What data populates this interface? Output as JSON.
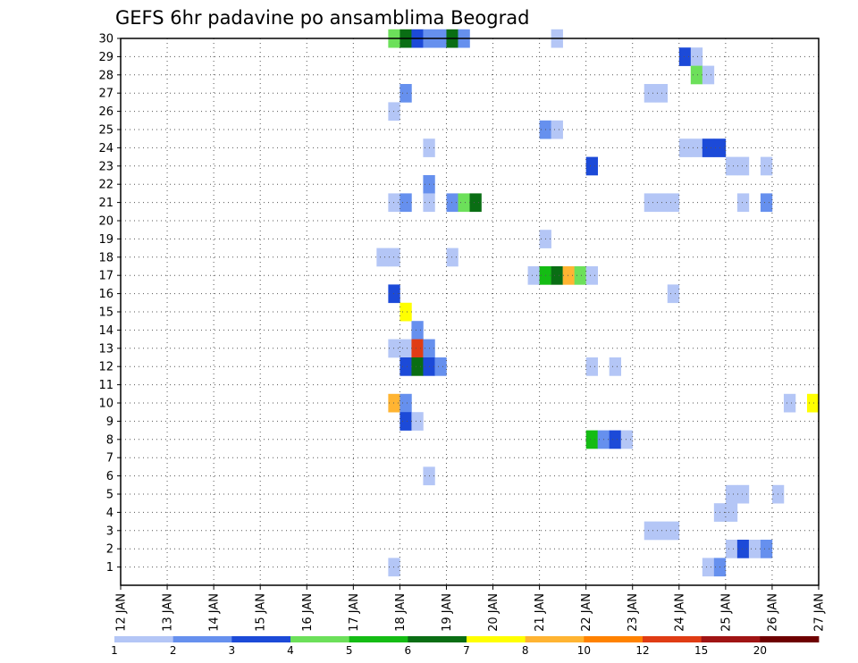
{
  "chart_data": {
    "type": "heatmap",
    "title": "GEFS 6hr padavine po ansamblima Beograd",
    "x_tick_labels": [
      "12 JAN",
      "13 JAN",
      "14 JAN",
      "15 JAN",
      "16 JAN",
      "17 JAN",
      "18 JAN",
      "19 JAN",
      "20 JAN",
      "21 JAN",
      "22 JAN",
      "23 JAN",
      "24 JAN",
      "25 JAN",
      "26 JAN",
      "27 JAN"
    ],
    "x_range_days": [
      12,
      27
    ],
    "y_tick_labels": [
      "1",
      "2",
      "3",
      "4",
      "5",
      "6",
      "7",
      "8",
      "9",
      "10",
      "11",
      "12",
      "13",
      "14",
      "15",
      "16",
      "17",
      "18",
      "19",
      "20",
      "21",
      "22",
      "23",
      "24",
      "25",
      "26",
      "27",
      "28",
      "29",
      "30"
    ],
    "y_range": [
      0,
      30
    ],
    "grid": true,
    "time_step_hours": 6,
    "colorbar": {
      "tick_labels": [
        "1",
        "2",
        "3",
        "4",
        "5",
        "6",
        "7",
        "8",
        "10",
        "12",
        "15",
        "20"
      ],
      "colors": [
        "#b4c6f6",
        "#6690ee",
        "#1c4ad8",
        "#6ce05a",
        "#14bc14",
        "#0a6e14",
        "#ffff00",
        "#ffb432",
        "#ff8200",
        "#e03c14",
        "#a01414",
        "#6e0000"
      ]
    },
    "cells": [
      {
        "member": 30,
        "day": 17.75,
        "level": 4
      },
      {
        "member": 30,
        "day": 18.0,
        "level": 6
      },
      {
        "member": 30,
        "day": 18.25,
        "level": 3
      },
      {
        "member": 30,
        "day": 18.5,
        "level": 2
      },
      {
        "member": 30,
        "day": 18.75,
        "level": 2
      },
      {
        "member": 30,
        "day": 19.0,
        "level": 6
      },
      {
        "member": 30,
        "day": 19.25,
        "level": 2
      },
      {
        "member": 30,
        "day": 21.25,
        "level": 1
      },
      {
        "member": 29,
        "day": 24.0,
        "level": 3
      },
      {
        "member": 29,
        "day": 24.25,
        "level": 1
      },
      {
        "member": 28,
        "day": 24.25,
        "level": 4
      },
      {
        "member": 28,
        "day": 24.5,
        "level": 1
      },
      {
        "member": 27,
        "day": 18.0,
        "level": 2
      },
      {
        "member": 27,
        "day": 23.25,
        "level": 1
      },
      {
        "member": 27,
        "day": 23.5,
        "level": 1
      },
      {
        "member": 26,
        "day": 17.75,
        "level": 1
      },
      {
        "member": 25,
        "day": 21.0,
        "level": 2
      },
      {
        "member": 25,
        "day": 21.25,
        "level": 1
      },
      {
        "member": 24,
        "day": 18.5,
        "level": 1
      },
      {
        "member": 24,
        "day": 24.0,
        "level": 1
      },
      {
        "member": 24,
        "day": 24.25,
        "level": 1
      },
      {
        "member": 24,
        "day": 24.5,
        "level": 3
      },
      {
        "member": 24,
        "day": 24.75,
        "level": 3
      },
      {
        "member": 23,
        "day": 22.0,
        "level": 3
      },
      {
        "member": 23,
        "day": 25.0,
        "level": 1
      },
      {
        "member": 23,
        "day": 25.25,
        "level": 1
      },
      {
        "member": 23,
        "day": 25.75,
        "level": 1
      },
      {
        "member": 22,
        "day": 18.5,
        "level": 2
      },
      {
        "member": 21,
        "day": 17.75,
        "level": 1
      },
      {
        "member": 21,
        "day": 18.0,
        "level": 2
      },
      {
        "member": 21,
        "day": 18.5,
        "level": 1
      },
      {
        "member": 21,
        "day": 19.0,
        "level": 2
      },
      {
        "member": 21,
        "day": 19.25,
        "level": 4
      },
      {
        "member": 21,
        "day": 19.5,
        "level": 6
      },
      {
        "member": 21,
        "day": 23.25,
        "level": 1
      },
      {
        "member": 21,
        "day": 23.5,
        "level": 1
      },
      {
        "member": 21,
        "day": 23.75,
        "level": 1
      },
      {
        "member": 21,
        "day": 25.25,
        "level": 1
      },
      {
        "member": 21,
        "day": 25.75,
        "level": 2
      },
      {
        "member": 19,
        "day": 21.0,
        "level": 1
      },
      {
        "member": 18,
        "day": 17.5,
        "level": 1
      },
      {
        "member": 18,
        "day": 17.75,
        "level": 1
      },
      {
        "member": 18,
        "day": 19.0,
        "level": 1
      },
      {
        "member": 17,
        "day": 20.75,
        "level": 1
      },
      {
        "member": 17,
        "day": 21.0,
        "level": 5
      },
      {
        "member": 17,
        "day": 21.25,
        "level": 6
      },
      {
        "member": 17,
        "day": 21.5,
        "level": 8
      },
      {
        "member": 17,
        "day": 21.75,
        "level": 4
      },
      {
        "member": 17,
        "day": 22.0,
        "level": 1
      },
      {
        "member": 16,
        "day": 17.75,
        "level": 3
      },
      {
        "member": 16,
        "day": 23.75,
        "level": 1
      },
      {
        "member": 15,
        "day": 18.0,
        "level": 7
      },
      {
        "member": 14,
        "day": 18.25,
        "level": 2
      },
      {
        "member": 13,
        "day": 17.75,
        "level": 1
      },
      {
        "member": 13,
        "day": 18.0,
        "level": 1
      },
      {
        "member": 13,
        "day": 18.25,
        "level": 10
      },
      {
        "member": 13,
        "day": 18.5,
        "level": 2
      },
      {
        "member": 12,
        "day": 18.0,
        "level": 3
      },
      {
        "member": 12,
        "day": 18.25,
        "level": 6
      },
      {
        "member": 12,
        "day": 18.5,
        "level": 3
      },
      {
        "member": 12,
        "day": 18.75,
        "level": 2
      },
      {
        "member": 12,
        "day": 22.0,
        "level": 1
      },
      {
        "member": 12,
        "day": 22.5,
        "level": 1
      },
      {
        "member": 10,
        "day": 17.75,
        "level": 8
      },
      {
        "member": 10,
        "day": 18.0,
        "level": 2
      },
      {
        "member": 10,
        "day": 26.25,
        "level": 1
      },
      {
        "member": 10,
        "day": 26.75,
        "level": 7
      },
      {
        "member": 9,
        "day": 18.0,
        "level": 3
      },
      {
        "member": 9,
        "day": 18.25,
        "level": 1
      },
      {
        "member": 8,
        "day": 22.0,
        "level": 5
      },
      {
        "member": 8,
        "day": 22.25,
        "level": 2
      },
      {
        "member": 8,
        "day": 22.5,
        "level": 3
      },
      {
        "member": 8,
        "day": 22.75,
        "level": 1
      },
      {
        "member": 6,
        "day": 18.5,
        "level": 1
      },
      {
        "member": 5,
        "day": 25.0,
        "level": 1
      },
      {
        "member": 5,
        "day": 25.25,
        "level": 1
      },
      {
        "member": 5,
        "day": 26.0,
        "level": 1
      },
      {
        "member": 4,
        "day": 24.75,
        "level": 1
      },
      {
        "member": 4,
        "day": 25.0,
        "level": 1
      },
      {
        "member": 3,
        "day": 23.25,
        "level": 1
      },
      {
        "member": 3,
        "day": 23.5,
        "level": 1
      },
      {
        "member": 3,
        "day": 23.75,
        "level": 1
      },
      {
        "member": 2,
        "day": 25.0,
        "level": 1
      },
      {
        "member": 2,
        "day": 25.25,
        "level": 3
      },
      {
        "member": 2,
        "day": 25.5,
        "level": 1
      },
      {
        "member": 2,
        "day": 25.75,
        "level": 2
      },
      {
        "member": 1,
        "day": 17.75,
        "level": 1
      },
      {
        "member": 1,
        "day": 24.5,
        "level": 1
      },
      {
        "member": 1,
        "day": 24.75,
        "level": 2
      }
    ]
  }
}
